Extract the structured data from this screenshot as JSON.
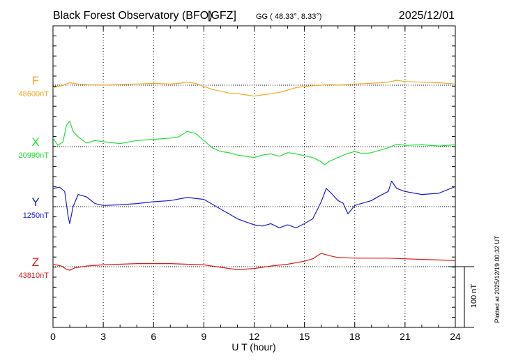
{
  "header": {
    "station": "Black Forest Observatory (BFO)",
    "institute": "[GFZ]",
    "coords": "GG ( 48.33°,   8.33°)",
    "date": "2025/12/01"
  },
  "footer_note": "Plotted at 2025/12/19 00:32 UT",
  "chart_data": {
    "type": "line",
    "xlabel": "U T (hour)",
    "xlim": [
      0,
      24
    ],
    "xticks": [
      0,
      3,
      6,
      9,
      12,
      15,
      18,
      21,
      24
    ],
    "tick_labels": [
      "0",
      "3",
      "6",
      "9",
      "12",
      "15",
      "18",
      "21",
      "24"
    ],
    "grid": true,
    "scale_bar": {
      "label": "100 nT",
      "value_nT": 100
    },
    "series": [
      {
        "name": "F",
        "baseline_label": "48600nT",
        "color": "#f5a623",
        "x": [
          0,
          0.5,
          1,
          1.5,
          2,
          3,
          4,
          5,
          6,
          7,
          7.5,
          8,
          8.5,
          9,
          9.5,
          10,
          10.5,
          11,
          11.5,
          12,
          12.5,
          13,
          13.5,
          14,
          14.5,
          15,
          15.5,
          16,
          16.5,
          17,
          18,
          19,
          20,
          20.5,
          21,
          22,
          23,
          24
        ],
        "y": [
          -4,
          -1,
          4,
          2,
          1,
          0,
          1,
          2,
          3,
          2,
          3,
          5,
          3,
          -2,
          -7,
          -10,
          -13,
          -14,
          -16,
          -18,
          -16,
          -14,
          -12,
          -8,
          -4,
          -2,
          -1,
          0,
          1,
          0,
          2,
          3,
          5,
          8,
          6,
          5,
          4,
          2
        ]
      },
      {
        "name": "X",
        "baseline_label": "20990nT",
        "color": "#22dd33",
        "x": [
          0,
          0.3,
          0.6,
          0.8,
          1,
          1.2,
          1.5,
          2,
          2.5,
          3,
          4,
          5,
          6,
          7,
          7.5,
          8,
          8.5,
          9,
          9.5,
          10,
          10.5,
          11,
          11.5,
          12,
          12.5,
          13,
          13.5,
          14,
          14.5,
          15,
          15.5,
          16,
          16.2,
          16.5,
          17,
          17.5,
          18,
          18.5,
          19,
          19.5,
          20,
          20.5,
          21,
          22,
          23,
          24
        ],
        "y": [
          14,
          2,
          8,
          35,
          42,
          25,
          16,
          6,
          10,
          8,
          5,
          10,
          12,
          14,
          16,
          25,
          22,
          10,
          -2,
          -8,
          -10,
          -14,
          -16,
          -18,
          -14,
          -12,
          -16,
          -10,
          -12,
          -15,
          -18,
          -25,
          -30,
          -24,
          -18,
          -12,
          -8,
          -12,
          -10,
          -6,
          -2,
          4,
          2,
          3,
          1,
          3
        ]
      },
      {
        "name": "Y",
        "baseline_label": "1250nT",
        "color": "#1a1ad6",
        "x": [
          0,
          0.4,
          0.7,
          0.9,
          1,
          1.2,
          1.5,
          2,
          2.5,
          3,
          4,
          5,
          6,
          7,
          8,
          9,
          9.5,
          10,
          10.5,
          11,
          11.5,
          12,
          12.5,
          13,
          13.5,
          14,
          14.5,
          15,
          15.5,
          16,
          16.3,
          16.6,
          17,
          17.3,
          17.6,
          18,
          18.5,
          19,
          19.5,
          20,
          20.2,
          20.5,
          21,
          22,
          23,
          24
        ],
        "y": [
          30,
          32,
          25,
          -15,
          -28,
          0,
          20,
          16,
          5,
          2,
          3,
          5,
          8,
          10,
          15,
          12,
          4,
          -4,
          -12,
          -20,
          -25,
          -30,
          -32,
          -28,
          -35,
          -30,
          -35,
          -28,
          -20,
          8,
          30,
          22,
          10,
          6,
          -12,
          2,
          6,
          10,
          18,
          25,
          42,
          30,
          25,
          20,
          22,
          33
        ]
      },
      {
        "name": "Z",
        "baseline_label": "43810nT",
        "color": "#e01818",
        "x": [
          0,
          0.5,
          0.8,
          1,
          1.3,
          2,
          3,
          4,
          5,
          6,
          7,
          8,
          9,
          10,
          10.5,
          11,
          11.5,
          12,
          12.5,
          13,
          14,
          15,
          15.5,
          16,
          16.5,
          17,
          18,
          19,
          20,
          21,
          22,
          23,
          24
        ],
        "y": [
          4,
          1,
          -4,
          -6,
          -2,
          1,
          3,
          4,
          5,
          5,
          5,
          4,
          3,
          -1,
          -3,
          -5,
          -4,
          -3,
          -1,
          1,
          4,
          9,
          13,
          22,
          18,
          15,
          14,
          14,
          14,
          13,
          12,
          11,
          10
        ]
      }
    ]
  }
}
